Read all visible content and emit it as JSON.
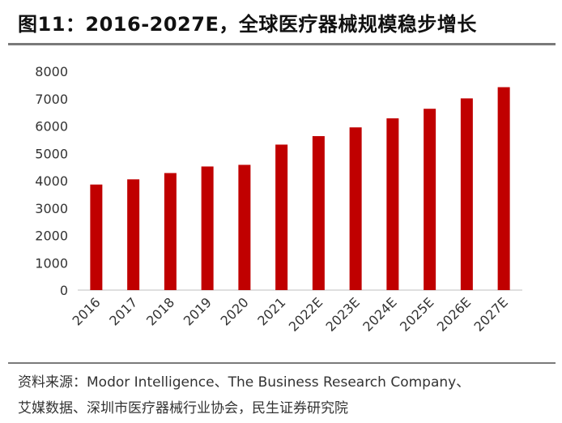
{
  "title": "图11：2016-2027E，全球医疗器械规模稳步增长",
  "source_line1": "资料来源：Modor Intelligence、The Business Research Company、",
  "source_line2": "艾媒数据、深圳市医疗器械行业协会，民生证券研究院",
  "colors": {
    "bar": "#c00000",
    "axis": "#bfbfbf",
    "text": "#333333"
  },
  "chart_data": {
    "type": "bar",
    "categories": [
      "2016",
      "2017",
      "2018",
      "2019",
      "2020",
      "2021",
      "2022E",
      "2023E",
      "2024E",
      "2025E",
      "2026E",
      "2027E"
    ],
    "values": [
      3860,
      4050,
      4280,
      4520,
      4580,
      5320,
      5630,
      5950,
      6280,
      6630,
      7010,
      7420
    ],
    "ylim": [
      0,
      8000
    ],
    "yticks": [
      "0",
      "1000",
      "2000",
      "3000",
      "4000",
      "5000",
      "6000",
      "7000",
      "8000"
    ],
    "grid": false,
    "legend": "none"
  }
}
